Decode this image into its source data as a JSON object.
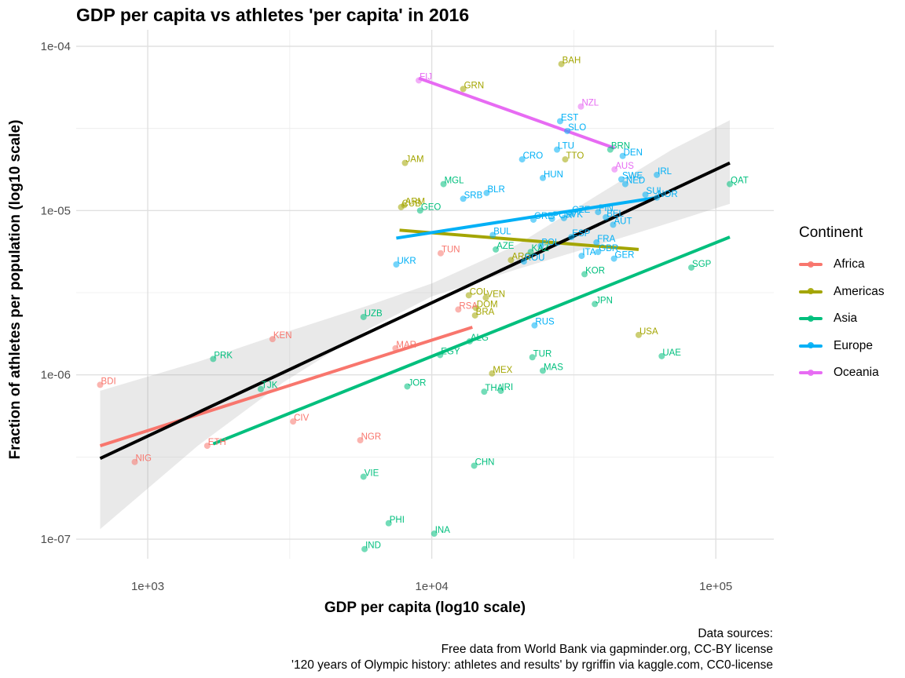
{
  "title": "GDP per capita vs athletes 'per capita' in 2016",
  "caption": [
    "Data sources:",
    "Free data from World Bank via gapminder.org, CC-BY license",
    "'120 years of Olympic history: athletes and results' by rgriffin via kaggle.com, CC0-license"
  ],
  "legend": {
    "title": "Continent",
    "items": [
      {
        "label": "Africa",
        "color": "#F8766D"
      },
      {
        "label": "Americas",
        "color": "#A3A500"
      },
      {
        "label": "Asia",
        "color": "#00BF7D"
      },
      {
        "label": "Europe",
        "color": "#00B0F6"
      },
      {
        "label": "Oceania",
        "color": "#E76BF3"
      }
    ]
  },
  "chart_data": {
    "type": "scatter",
    "title": "GDP per capita vs athletes 'per capita' in 2016",
    "xlabel": "GDP per capita (log10 scale)",
    "ylabel": "Fraction of athletes per population (log10 scale)",
    "x_scale": "log10",
    "y_scale": "log10",
    "xlim": [
      560,
      160000
    ],
    "ylim": [
      7.6e-08,
      0.000126
    ],
    "x_ticks": [
      {
        "value": 1000,
        "label": "1e+03"
      },
      {
        "value": 10000,
        "label": "1e+04"
      },
      {
        "value": 100000,
        "label": "1e+05"
      }
    ],
    "y_ticks": [
      {
        "value": 1e-07,
        "label": "1e-07"
      },
      {
        "value": 1e-06,
        "label": "1e-06"
      },
      {
        "value": 1e-05,
        "label": "1e-05"
      },
      {
        "value": 0.0001,
        "label": "1e-04"
      }
    ],
    "grid": true,
    "legend_position": "right",
    "points": [
      {
        "label": "BDI",
        "continent": "Africa",
        "x": 680,
        "y": 8.7e-07
      },
      {
        "label": "NIG",
        "continent": "Africa",
        "x": 900,
        "y": 2.95e-07
      },
      {
        "label": "ETH",
        "continent": "Africa",
        "x": 1620,
        "y": 3.7e-07
      },
      {
        "label": "KEN",
        "continent": "Africa",
        "x": 2750,
        "y": 1.65e-06
      },
      {
        "label": "CIV",
        "continent": "Africa",
        "x": 3250,
        "y": 5.2e-07
      },
      {
        "label": "NGR",
        "continent": "Africa",
        "x": 5600,
        "y": 4e-07
      },
      {
        "label": "MAR",
        "continent": "Africa",
        "x": 7450,
        "y": 1.45e-06
      },
      {
        "label": "TUN",
        "continent": "Africa",
        "x": 10750,
        "y": 5.5e-06
      },
      {
        "label": "RSA",
        "continent": "Africa",
        "x": 12400,
        "y": 2.5e-06
      },
      {
        "label": "JAM",
        "continent": "Americas",
        "x": 8050,
        "y": 1.95e-05
      },
      {
        "label": "CUB",
        "continent": "Americas",
        "x": 7800,
        "y": 1.05e-05
      },
      {
        "label": "ARM",
        "continent": "Americas",
        "x": 8000,
        "y": 1.08e-05
      },
      {
        "label": "GRN",
        "continent": "Americas",
        "x": 12900,
        "y": 5.5e-05
      },
      {
        "label": "BAH",
        "continent": "Americas",
        "x": 28600,
        "y": 7.8e-05
      },
      {
        "label": "TTO",
        "continent": "Americas",
        "x": 29500,
        "y": 2.05e-05
      },
      {
        "label": "COL",
        "continent": "Americas",
        "x": 13500,
        "y": 3.05e-06
      },
      {
        "label": "VEN",
        "continent": "Americas",
        "x": 15500,
        "y": 2.95e-06
      },
      {
        "label": "DOM",
        "continent": "Americas",
        "x": 14300,
        "y": 2.55e-06
      },
      {
        "label": "BRA",
        "continent": "Americas",
        "x": 14200,
        "y": 2.3e-06
      },
      {
        "label": "ARG",
        "continent": "Americas",
        "x": 19000,
        "y": 5e-06
      },
      {
        "label": "MEX",
        "continent": "Americas",
        "x": 16300,
        "y": 1.02e-06
      },
      {
        "label": "USA",
        "continent": "Americas",
        "x": 53500,
        "y": 1.75e-06
      },
      {
        "label": "MGL",
        "continent": "Asia",
        "x": 11000,
        "y": 1.45e-05
      },
      {
        "label": "GEO",
        "continent": "Asia",
        "x": 9100,
        "y": 1e-05
      },
      {
        "label": "UZB",
        "continent": "Asia",
        "x": 5750,
        "y": 2.25e-06
      },
      {
        "label": "PRK",
        "continent": "Asia",
        "x": 1700,
        "y": 1.25e-06
      },
      {
        "label": "TJK",
        "continent": "Asia",
        "x": 2500,
        "y": 8.2e-07
      },
      {
        "label": "JOR",
        "continent": "Asia",
        "x": 8200,
        "y": 8.5e-07
      },
      {
        "label": "EGY",
        "continent": "Asia",
        "x": 10700,
        "y": 1.32e-06
      },
      {
        "label": "ALG",
        "continent": "Asia",
        "x": 13600,
        "y": 1.6e-06
      },
      {
        "label": "AZE",
        "continent": "Asia",
        "x": 16800,
        "y": 5.8e-06
      },
      {
        "label": "KAZ",
        "continent": "Asia",
        "x": 22300,
        "y": 5.6e-06
      },
      {
        "label": "THA",
        "continent": "Asia",
        "x": 15300,
        "y": 7.9e-07
      },
      {
        "label": "IRI",
        "continent": "Asia",
        "x": 17500,
        "y": 8e-07
      },
      {
        "label": "TUR",
        "continent": "Asia",
        "x": 22600,
        "y": 1.28e-06
      },
      {
        "label": "MAS",
        "continent": "Asia",
        "x": 24600,
        "y": 1.06e-06
      },
      {
        "label": "CHN",
        "continent": "Asia",
        "x": 14100,
        "y": 2.8e-07
      },
      {
        "label": "VIE",
        "continent": "Asia",
        "x": 5750,
        "y": 2.4e-07
      },
      {
        "label": "PHI",
        "continent": "Asia",
        "x": 7050,
        "y": 1.25e-07
      },
      {
        "label": "INA",
        "continent": "Asia",
        "x": 10200,
        "y": 1.08e-07
      },
      {
        "label": "IND",
        "continent": "Asia",
        "x": 5800,
        "y": 8.7e-08
      },
      {
        "label": "KOR",
        "continent": "Asia",
        "x": 34500,
        "y": 4.1e-06
      },
      {
        "label": "JPN",
        "continent": "Asia",
        "x": 37500,
        "y": 2.7e-06
      },
      {
        "label": "UAE",
        "continent": "Asia",
        "x": 64500,
        "y": 1.3e-06
      },
      {
        "label": "SGP",
        "continent": "Asia",
        "x": 82000,
        "y": 4.5e-06
      },
      {
        "label": "QAT",
        "continent": "Asia",
        "x": 112000,
        "y": 1.45e-05
      },
      {
        "label": "BRN",
        "continent": "Asia",
        "x": 42500,
        "y": 2.35e-05
      },
      {
        "label": "UKR",
        "continent": "Europe",
        "x": 7500,
        "y": 4.7e-06
      },
      {
        "label": "SRB",
        "continent": "Europe",
        "x": 12900,
        "y": 1.18e-05
      },
      {
        "label": "BLR",
        "continent": "Europe",
        "x": 15600,
        "y": 1.28e-05
      },
      {
        "label": "BUL",
        "continent": "Europe",
        "x": 16400,
        "y": 7.1e-06
      },
      {
        "label": "CRO",
        "continent": "Europe",
        "x": 20800,
        "y": 2.05e-05
      },
      {
        "label": "HUN",
        "continent": "Europe",
        "x": 24600,
        "y": 1.58e-05
      },
      {
        "label": "LTU",
        "continent": "Europe",
        "x": 27600,
        "y": 2.35e-05
      },
      {
        "label": "EST",
        "continent": "Europe",
        "x": 28300,
        "y": 3.5e-05
      },
      {
        "label": "SLO",
        "continent": "Europe",
        "x": 30000,
        "y": 3.05e-05
      },
      {
        "label": "POL",
        "continent": "Europe",
        "x": 24200,
        "y": 6.1e-06
      },
      {
        "label": "ROU",
        "continent": "Europe",
        "x": 21100,
        "y": 4.9e-06
      },
      {
        "label": "RUS",
        "continent": "Europe",
        "x": 23000,
        "y": 2e-06
      },
      {
        "label": "SVK",
        "continent": "Europe",
        "x": 29200,
        "y": 9e-06
      },
      {
        "label": "GRE",
        "continent": "Europe",
        "x": 22800,
        "y": 8.8e-06
      },
      {
        "label": "POR",
        "continent": "Europe",
        "x": 26500,
        "y": 8.9e-06
      },
      {
        "label": "CZE",
        "continent": "Europe",
        "x": 31000,
        "y": 9.6e-06
      },
      {
        "label": "FIN",
        "continent": "Europe",
        "x": 38500,
        "y": 9.8e-06
      },
      {
        "label": "BEL",
        "continent": "Europe",
        "x": 41000,
        "y": 9.1e-06
      },
      {
        "label": "AUT",
        "continent": "Europe",
        "x": 43500,
        "y": 8.2e-06
      },
      {
        "label": "ESP",
        "continent": "Europe",
        "x": 31000,
        "y": 6.9e-06
      },
      {
        "label": "FRA",
        "continent": "Europe",
        "x": 38000,
        "y": 6.4e-06
      },
      {
        "label": "ITA",
        "continent": "Europe",
        "x": 33700,
        "y": 5.3e-06
      },
      {
        "label": "GBR",
        "continent": "Europe",
        "x": 38500,
        "y": 5.6e-06
      },
      {
        "label": "GER",
        "continent": "Europe",
        "x": 43800,
        "y": 5.1e-06
      },
      {
        "label": "DEN",
        "continent": "Europe",
        "x": 47000,
        "y": 2.15e-05
      },
      {
        "label": "SWE",
        "continent": "Europe",
        "x": 46500,
        "y": 1.55e-05
      },
      {
        "label": "NED",
        "continent": "Europe",
        "x": 48000,
        "y": 1.45e-05
      },
      {
        "label": "IRL",
        "continent": "Europe",
        "x": 62000,
        "y": 1.65e-05
      },
      {
        "label": "SUI",
        "continent": "Europe",
        "x": 56500,
        "y": 1.25e-05
      },
      {
        "label": "NOR",
        "continent": "Europe",
        "x": 62000,
        "y": 1.2e-05
      },
      {
        "label": "FIJ",
        "continent": "Oceania",
        "x": 9000,
        "y": 6.2e-05
      },
      {
        "label": "NZL",
        "continent": "Oceania",
        "x": 33500,
        "y": 4.3e-05
      },
      {
        "label": "AUS",
        "continent": "Oceania",
        "x": 44000,
        "y": 1.78e-05
      }
    ],
    "fit_lines": [
      {
        "continent": "Africa",
        "x": [
          680,
          13900
        ],
        "y": [
          3.7e-07,
          1.95e-06
        ]
      },
      {
        "continent": "Americas",
        "x": [
          7700,
          53500
        ],
        "y": [
          7.6e-06,
          5.8e-06
        ]
      },
      {
        "continent": "Asia",
        "x": [
          1700,
          112000
        ],
        "y": [
          3.8e-07,
          6.9e-06
        ]
      },
      {
        "continent": "Europe",
        "x": [
          7500,
          62000
        ],
        "y": [
          6.8e-06,
          1.2e-05
        ]
      },
      {
        "continent": "Oceania",
        "x": [
          9000,
          44000
        ],
        "y": [
          6.4e-05,
          2.4e-05
        ]
      }
    ],
    "overall_fit": {
      "x": [
        680,
        112000
      ],
      "y": [
        3.1e-07,
        1.95e-05
      ]
    },
    "confidence_band": {
      "x": [
        680,
        1500,
        3000,
        6000,
        10000,
        20000,
        40000,
        70000,
        112000
      ],
      "lower": [
        1.15e-07,
        3.7e-07,
        9e-07,
        1.9e-06,
        3e-06,
        4.4e-06,
        6.3e-06,
        8.5e-06,
        1.1e-05
      ],
      "upper": [
        8e-07,
        1.2e-06,
        1.8e-06,
        2.65e-06,
        3.6e-06,
        6.2e-06,
        1.3e-05,
        2.35e-05,
        3.55e-05
      ]
    }
  }
}
